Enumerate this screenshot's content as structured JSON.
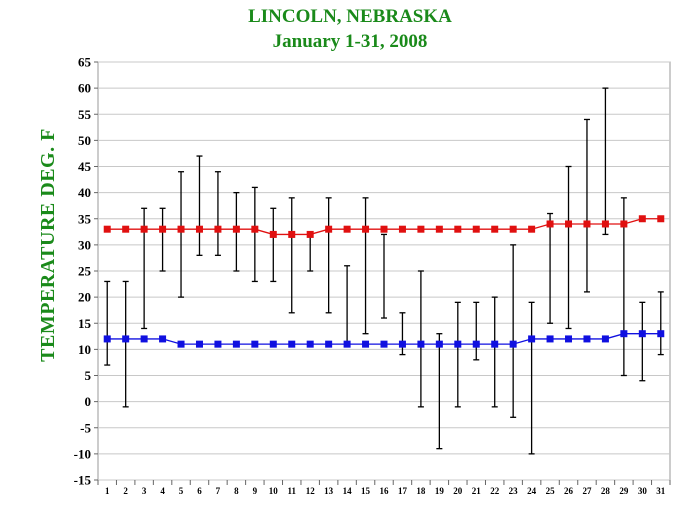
{
  "chart_data": {
    "type": "line",
    "title": "LINCOLN, NEBRASKA",
    "subtitle": "January 1-31,  2008",
    "ylabel": "TEMPERATURE DEG. F",
    "xlabel": "",
    "ylim": [
      -15,
      65
    ],
    "y_ticks": [
      -15,
      -10,
      -5,
      0,
      5,
      10,
      15,
      20,
      25,
      30,
      35,
      40,
      45,
      50,
      55,
      60,
      65
    ],
    "x": [
      1,
      2,
      3,
      4,
      5,
      6,
      7,
      8,
      9,
      10,
      11,
      12,
      13,
      14,
      15,
      16,
      17,
      18,
      19,
      20,
      21,
      22,
      23,
      24,
      25,
      26,
      27,
      28,
      29,
      30,
      31
    ],
    "grid": "horizontal",
    "series": [
      {
        "color": "#e01010",
        "values": [
          33,
          33,
          33,
          33,
          33,
          33,
          33,
          33,
          33,
          32,
          32,
          32,
          33,
          33,
          33,
          33,
          33,
          33,
          33,
          33,
          33,
          33,
          33,
          33,
          34,
          34,
          34,
          34,
          34,
          35,
          35
        ]
      },
      {
        "color": "#1010e0",
        "values": [
          12,
          12,
          12,
          12,
          11,
          11,
          11,
          11,
          11,
          11,
          11,
          11,
          11,
          11,
          11,
          11,
          11,
          11,
          11,
          11,
          11,
          11,
          11,
          12,
          12,
          12,
          12,
          12,
          13,
          13,
          13
        ]
      }
    ],
    "range_bars": [
      {
        "day": 1,
        "high": 23,
        "low": 7
      },
      {
        "day": 2,
        "high": 23,
        "low": -1
      },
      {
        "day": 3,
        "high": 37,
        "low": 14
      },
      {
        "day": 4,
        "high": 37,
        "low": 25
      },
      {
        "day": 5,
        "high": 44,
        "low": 20
      },
      {
        "day": 6,
        "high": 47,
        "low": 28
      },
      {
        "day": 7,
        "high": 44,
        "low": 28
      },
      {
        "day": 8,
        "high": 40,
        "low": 25
      },
      {
        "day": 9,
        "high": 41,
        "low": 23
      },
      {
        "day": 10,
        "high": 37,
        "low": 23
      },
      {
        "day": 11,
        "high": 39,
        "low": 17
      },
      {
        "day": 12,
        "high": 32,
        "low": 25
      },
      {
        "day": 13,
        "high": 39,
        "low": 17
      },
      {
        "day": 14,
        "high": 26,
        "low": 11
      },
      {
        "day": 15,
        "high": 39,
        "low": 13
      },
      {
        "day": 16,
        "high": 32,
        "low": 16
      },
      {
        "day": 17,
        "high": 17,
        "low": 9
      },
      {
        "day": 18,
        "high": 25,
        "low": -1
      },
      {
        "day": 19,
        "high": 13,
        "low": -9
      },
      {
        "day": 20,
        "high": 19,
        "low": -1
      },
      {
        "day": 21,
        "high": 19,
        "low": 8
      },
      {
        "day": 22,
        "high": 20,
        "low": -1
      },
      {
        "day": 23,
        "high": 30,
        "low": -3
      },
      {
        "day": 24,
        "high": 19,
        "low": -10
      },
      {
        "day": 25,
        "high": 36,
        "low": 15
      },
      {
        "day": 26,
        "high": 45,
        "low": 14
      },
      {
        "day": 27,
        "high": 54,
        "low": 21
      },
      {
        "day": 28,
        "high": 60,
        "low": 32
      },
      {
        "day": 29,
        "high": 39,
        "low": 5
      },
      {
        "day": 30,
        "high": 19,
        "low": 4
      },
      {
        "day": 31,
        "high": 21,
        "low": 9
      }
    ]
  }
}
